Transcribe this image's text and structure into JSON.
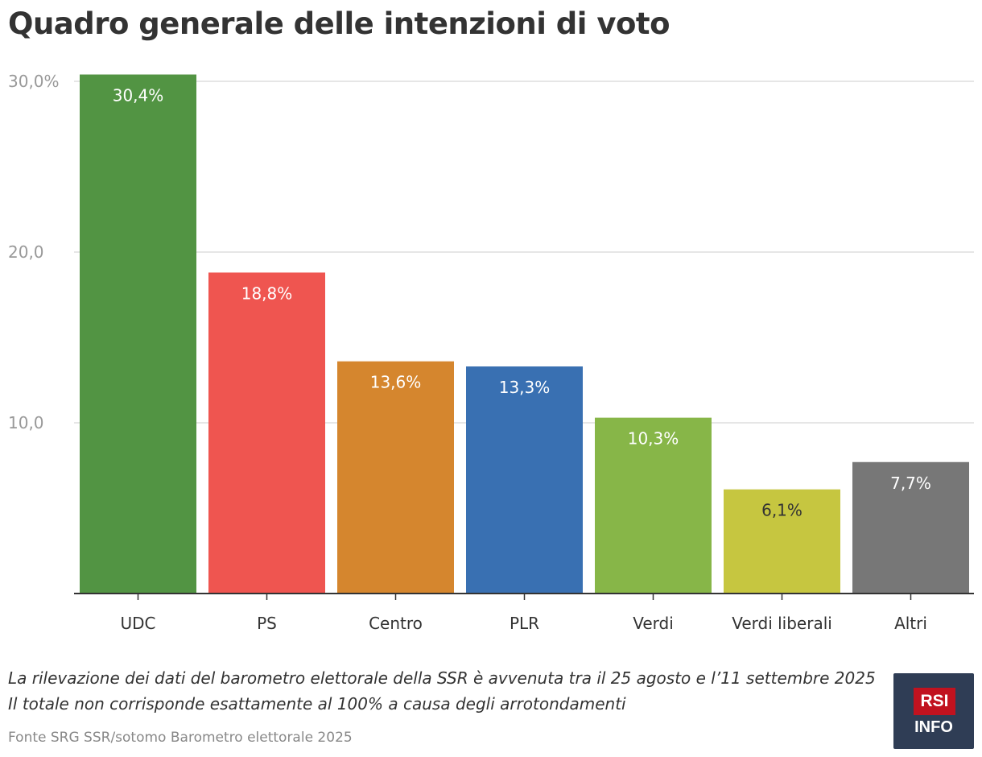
{
  "chart_data": {
    "type": "bar",
    "title": "Quadro generale delle intenzioni di voto",
    "categories": [
      "UDC",
      "PS",
      "Centro",
      "PLR",
      "Verdi",
      "Verdi liberali",
      "Altri"
    ],
    "values": [
      30.4,
      18.8,
      13.6,
      13.3,
      10.3,
      6.1,
      7.7
    ],
    "data_labels": [
      "30,4%",
      "18,8%",
      "13,6%",
      "13,3%",
      "10,3%",
      "6,1%",
      "7,7%"
    ],
    "colors": [
      "#529443",
      "#ef5550",
      "#d5862e",
      "#3970b2",
      "#87b648",
      "#c6c640",
      "#777777"
    ],
    "label_colors": [
      "#ffffff",
      "#ffffff",
      "#ffffff",
      "#ffffff",
      "#ffffff",
      "#333333",
      "#ffffff"
    ],
    "yticks": [
      10,
      20,
      30
    ],
    "ytick_labels": [
      "10,0",
      "20,0",
      "30,0%"
    ],
    "ylim": [
      0,
      30
    ],
    "xlabel": "",
    "ylabel": "",
    "grid": true
  },
  "notes": {
    "line1": "La rilevazione dei dati del barometro elettorale della SSR è avvenuta tra il 25 agosto e l’11 settembre 2025",
    "line2": "Il totale non corrisponde esattamente al 100% a causa degli arrotondamenti"
  },
  "source": "Fonte SRG SSR/sotomo Barometro elettorale 2025",
  "logo": {
    "top": "RSI",
    "bottom": "INFO"
  }
}
